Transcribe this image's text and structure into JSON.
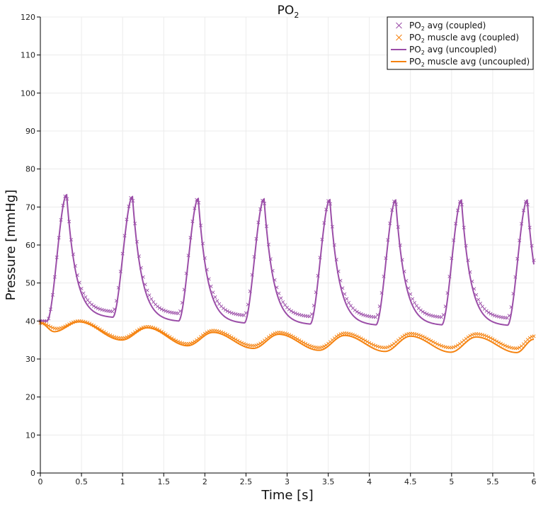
{
  "chart_data": {
    "type": "line",
    "title": "PO",
    "title_subscript": "2",
    "xlabel": "Time [s]",
    "ylabel": "Pressure [mmHg]",
    "xlim": [
      0,
      6
    ],
    "ylim": [
      0,
      120
    ],
    "x_ticks": [
      "0",
      "0.5",
      "1",
      "1.5",
      "2",
      "2.5",
      "3",
      "3.5",
      "4",
      "4.5",
      "5",
      "5.5",
      "6"
    ],
    "y_ticks": [
      "0",
      "10",
      "20",
      "30",
      "40",
      "50",
      "60",
      "70",
      "80",
      "90",
      "100",
      "110",
      "120"
    ],
    "grid": true,
    "legend_position": "top-right",
    "colors": {
      "purple": "#9b4ea8",
      "orange": "#f5820f"
    },
    "series": [
      {
        "name": "PO2 avg (coupled)",
        "label_parts": [
          "PO",
          "2",
          " avg (coupled)"
        ],
        "style": "markers",
        "marker": "x",
        "color": "#9b4ea8",
        "cycle_start": 0.08,
        "period": 0.8,
        "peaks": [
          73.5,
          73,
          72.5,
          72.3,
          72.2,
          72.1,
          72,
          72
        ],
        "troughs": [
          42.5,
          42,
          41.5,
          41.2,
          41,
          41,
          40.8,
          40.8
        ],
        "initial": 40
      },
      {
        "name": "PO2 muscle avg (coupled)",
        "label_parts": [
          "PO",
          "2",
          " muscle avg (coupled)"
        ],
        "style": "markers",
        "marker": "x",
        "color": "#f5820f",
        "x": [
          0,
          0.2,
          0.47,
          0.99,
          1.3,
          1.79,
          2.1,
          2.59,
          2.9,
          3.39,
          3.7,
          4.19,
          4.5,
          4.99,
          5.3,
          5.79,
          6.0
        ],
        "y": [
          39.5,
          38,
          40,
          35.5,
          38.5,
          34,
          37.5,
          33.5,
          37,
          33,
          36.8,
          33,
          36.7,
          33,
          36.6,
          32.8,
          36
        ]
      },
      {
        "name": "PO2 avg (uncoupled)",
        "label_parts": [
          "PO",
          "2",
          " avg (uncoupled)"
        ],
        "style": "line",
        "color": "#9b4ea8",
        "cycle_start": 0.08,
        "period": 0.8,
        "peaks": [
          73.2,
          72.7,
          72.2,
          72.1,
          71.9,
          71.8,
          71.8,
          71.8
        ],
        "troughs": [
          41,
          40,
          39.5,
          39.2,
          39,
          39,
          38.9,
          38.9
        ],
        "initial": 40
      },
      {
        "name": "PO2 muscle avg (uncoupled)",
        "label_parts": [
          "PO",
          "2",
          " muscle avg (uncoupled)"
        ],
        "style": "line",
        "color": "#f5820f",
        "x": [
          0,
          0.17,
          0.47,
          0.99,
          1.3,
          1.79,
          2.1,
          2.59,
          2.9,
          3.39,
          3.7,
          4.19,
          4.5,
          4.99,
          5.3,
          5.79,
          6.0
        ],
        "y": [
          39.5,
          37.2,
          39.8,
          35,
          38.2,
          33.5,
          37,
          32.8,
          36.5,
          32.3,
          36.2,
          32,
          36,
          31.8,
          35.8,
          31.7,
          35.2
        ]
      }
    ]
  }
}
